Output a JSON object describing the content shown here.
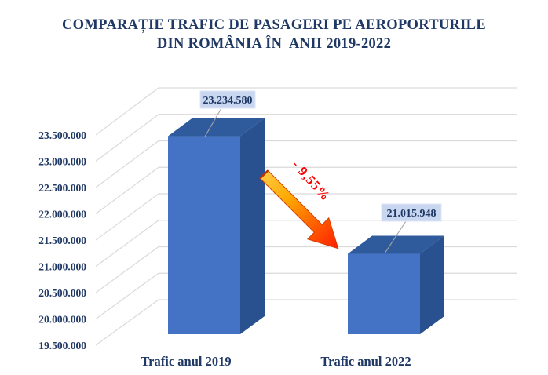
{
  "chart_title": {
    "line1": "COMPARAȚIE TRAFIC DE PASAGERI PE AEROPORTURILE",
    "line2": "DIN ROMÂNIA ÎN  ANII 2019-2022"
  },
  "chart_data": {
    "type": "bar",
    "style": "3d-column",
    "title": "COMPARAȚIE TRAFIC DE PASAGERI PE AEROPORTURILE DIN ROMÂNIA ÎN  ANII 2019-2022",
    "categories": [
      "Trafic anul 2019",
      "Trafic anul 2022"
    ],
    "values": [
      23234580,
      21015948
    ],
    "data_labels": [
      "23.234.580",
      "21.015.948"
    ],
    "annotation": "- 9,55%",
    "y_axis": {
      "ticks": [
        "23.500.000",
        "23.000.000",
        "22.500.000",
        "22.000.000",
        "21.500.000",
        "21.000.000",
        "20.500.000",
        "20.000.000",
        "19.500.000"
      ],
      "min": 19500000,
      "max": 23500000,
      "step": 500000
    },
    "grid": true,
    "legend": false
  },
  "colors": {
    "title_text": "#1F3864",
    "axis_text": "#1F3864",
    "bar_front": "#4472C4",
    "bar_top": "#2F5B9D",
    "bar_side": "#29508F",
    "gridline": "#DADADA",
    "leader_line": "#A6A6A6",
    "label_box_bg": "#C9D6F0",
    "label_box_border": "#DDE6F7",
    "annotation_text": "#FF0000",
    "arrow_gradient": [
      "#FFC940",
      "#FFA800",
      "#FF5A00",
      "#FF1E00"
    ],
    "arrow_outline": "#D43D00"
  }
}
